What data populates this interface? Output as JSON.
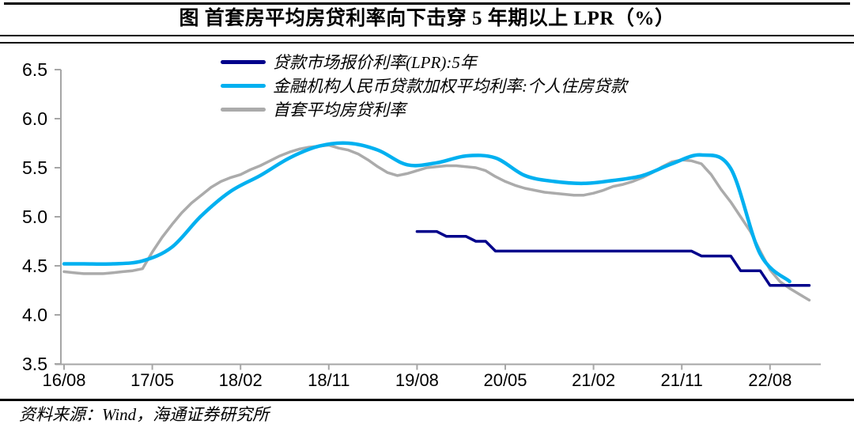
{
  "title": "图  首套房平均房贷利率向下击穿 5 年期以上 LPR（%）",
  "source": "资料来源：Wind，海通证券研究所",
  "colors": {
    "lpr_line": "#00008B",
    "weighted_avg_line": "#00B0F0",
    "first_home_line": "#ABABAB",
    "axis": "#A6A6A6",
    "text": "#000000",
    "rule": "#000000"
  },
  "chart_data": {
    "type": "line",
    "title": "图 首套房平均房贷利率向下击穿 5 年期以上 LPR（%）",
    "xlabel": "",
    "ylabel": "",
    "ylim": [
      3.5,
      6.5
    ],
    "ytick_labels": [
      "6.5",
      "6.0",
      "5.5",
      "5.0",
      "4.5",
      "4.0",
      "3.5"
    ],
    "yticks": [
      6.5,
      6.0,
      5.5,
      5.0,
      4.5,
      4.0,
      3.5
    ],
    "grid": false,
    "legend_position": "top-left-inside",
    "x_base_month": "2016-08",
    "x_unit": "months since 2016-08, ticks every 9 months",
    "xticks": [
      {
        "label": "16/08",
        "m": 0
      },
      {
        "label": "17/05",
        "m": 9
      },
      {
        "label": "18/02",
        "m": 18
      },
      {
        "label": "18/11",
        "m": 27
      },
      {
        "label": "19/08",
        "m": 36
      },
      {
        "label": "20/05",
        "m": 45
      },
      {
        "label": "21/02",
        "m": 54
      },
      {
        "label": "21/11",
        "m": 63
      },
      {
        "label": "22/08",
        "m": 72
      }
    ],
    "series": [
      {
        "name": "贷款市场报价利率(LPR):5年",
        "color": "#00008B",
        "width": 3.5,
        "smooth": false,
        "z": 1,
        "start_m": 36,
        "values": [
          4.85,
          4.85,
          4.85,
          4.8,
          4.8,
          4.8,
          4.75,
          4.75,
          4.65,
          4.65,
          4.65,
          4.65,
          4.65,
          4.65,
          4.65,
          4.65,
          4.65,
          4.65,
          4.65,
          4.65,
          4.65,
          4.65,
          4.65,
          4.65,
          4.65,
          4.65,
          4.65,
          4.65,
          4.65,
          4.6,
          4.6,
          4.6,
          4.6,
          4.45,
          4.45,
          4.45,
          4.3,
          4.3,
          4.3,
          4.3,
          4.3
        ]
      },
      {
        "name": "金融机构人民币贷款加权平均利率:个人住房贷款",
        "color": "#00B0F0",
        "width": 4.5,
        "smooth": true,
        "z": 2,
        "points": [
          [
            0,
            4.52
          ],
          [
            2,
            4.52
          ],
          [
            5,
            4.52
          ],
          [
            8,
            4.55
          ],
          [
            11,
            4.69
          ],
          [
            14,
            5.01
          ],
          [
            17,
            5.26
          ],
          [
            20,
            5.42
          ],
          [
            23,
            5.6
          ],
          [
            26,
            5.72
          ],
          [
            29,
            5.75
          ],
          [
            32,
            5.68
          ],
          [
            35,
            5.53
          ],
          [
            38,
            5.55
          ],
          [
            41,
            5.62
          ],
          [
            44,
            5.6
          ],
          [
            47,
            5.42
          ],
          [
            50,
            5.36
          ],
          [
            53,
            5.34
          ],
          [
            56,
            5.37
          ],
          [
            59,
            5.42
          ],
          [
            62,
            5.54
          ],
          [
            65,
            5.63
          ],
          [
            68,
            5.49
          ],
          [
            71,
            4.62
          ],
          [
            74,
            4.34
          ]
        ]
      },
      {
        "name": "首套平均房贷利率",
        "color": "#ABABAB",
        "width": 3.5,
        "smooth": false,
        "z": 0,
        "start_m": 0,
        "values": [
          4.44,
          4.43,
          4.42,
          4.42,
          4.42,
          4.43,
          4.44,
          4.45,
          4.47,
          4.64,
          4.79,
          4.92,
          5.04,
          5.14,
          5.22,
          5.3,
          5.36,
          5.4,
          5.43,
          5.48,
          5.52,
          5.57,
          5.62,
          5.66,
          5.69,
          5.71,
          5.72,
          5.73,
          5.7,
          5.68,
          5.64,
          5.58,
          5.51,
          5.45,
          5.42,
          5.44,
          5.47,
          5.5,
          5.51,
          5.52,
          5.52,
          5.51,
          5.5,
          5.47,
          5.41,
          5.36,
          5.32,
          5.29,
          5.27,
          5.25,
          5.24,
          5.23,
          5.22,
          5.22,
          5.24,
          5.27,
          5.31,
          5.33,
          5.36,
          5.4,
          5.45,
          5.51,
          5.56,
          5.58,
          5.57,
          5.54,
          5.43,
          5.28,
          5.15,
          5.0,
          4.85,
          4.65,
          4.46,
          4.34,
          4.27,
          4.21,
          4.15
        ]
      }
    ]
  }
}
